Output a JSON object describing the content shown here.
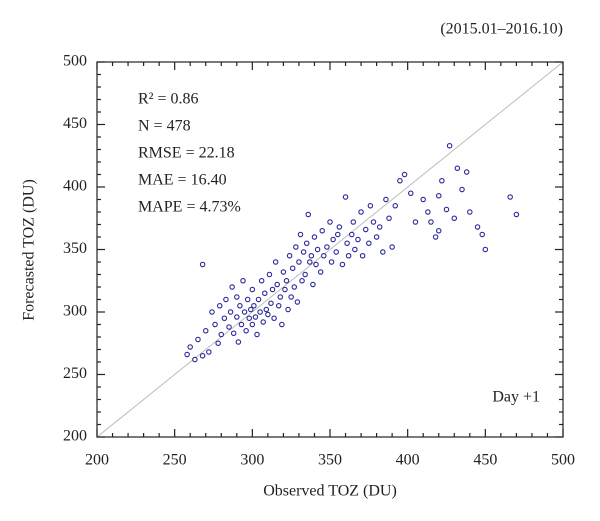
{
  "chart_data": {
    "type": "scatter",
    "subtitle": "(2015.01–2016.10)",
    "xlabel": "Observed TOZ (DU)",
    "ylabel": "Forecasted TOZ (DU)",
    "annotations": [
      "R² = 0.86",
      "N = 478",
      "RMSE = 22.18",
      "MAE = 16.40",
      "MAPE = 4.73%"
    ],
    "corner_note": "Day +1",
    "xlim": [
      200,
      500
    ],
    "ylim": [
      200,
      500
    ],
    "xticks": [
      200,
      250,
      300,
      350,
      400,
      450,
      500
    ],
    "yticks": [
      200,
      250,
      300,
      350,
      400,
      450,
      500
    ],
    "identity_line": true,
    "grid": false,
    "color": "#2b2b9c",
    "x": [
      258,
      260,
      263,
      265,
      268,
      268,
      270,
      272,
      274,
      276,
      278,
      279,
      280,
      282,
      283,
      285,
      286,
      287,
      288,
      290,
      290,
      291,
      292,
      293,
      294,
      295,
      296,
      297,
      298,
      299,
      300,
      300,
      301,
      302,
      303,
      304,
      305,
      306,
      307,
      308,
      309,
      310,
      311,
      312,
      313,
      314,
      315,
      316,
      317,
      318,
      319,
      320,
      321,
      322,
      323,
      324,
      325,
      326,
      327,
      328,
      329,
      330,
      331,
      332,
      333,
      334,
      335,
      336,
      337,
      338,
      339,
      340,
      341,
      342,
      344,
      345,
      346,
      348,
      350,
      351,
      352,
      354,
      355,
      356,
      358,
      360,
      361,
      362,
      364,
      365,
      366,
      368,
      370,
      371,
      373,
      375,
      376,
      378,
      380,
      382,
      384,
      386,
      388,
      390,
      392,
      395,
      398,
      402,
      405,
      410,
      413,
      415,
      418,
      420,
      422,
      425,
      427,
      430,
      432,
      435,
      438,
      440,
      445,
      448,
      450,
      466,
      470,
      420
    ],
    "y": [
      266,
      272,
      262,
      278,
      265,
      338,
      285,
      268,
      300,
      290,
      275,
      305,
      282,
      295,
      310,
      288,
      300,
      320,
      283,
      296,
      312,
      276,
      305,
      290,
      325,
      300,
      285,
      310,
      295,
      302,
      290,
      318,
      305,
      296,
      282,
      310,
      300,
      325,
      292,
      315,
      302,
      298,
      330,
      307,
      318,
      295,
      340,
      322,
      305,
      312,
      290,
      332,
      318,
      325,
      302,
      345,
      312,
      335,
      320,
      352,
      308,
      340,
      362,
      325,
      348,
      330,
      355,
      378,
      340,
      345,
      322,
      360,
      338,
      350,
      332,
      365,
      345,
      352,
      372,
      340,
      358,
      348,
      362,
      368,
      338,
      392,
      355,
      345,
      362,
      372,
      350,
      358,
      380,
      345,
      366,
      355,
      385,
      372,
      360,
      368,
      348,
      390,
      375,
      352,
      385,
      405,
      410,
      395,
      372,
      390,
      380,
      372,
      360,
      393,
      405,
      382,
      433,
      375,
      415,
      398,
      412,
      380,
      368,
      362,
      350,
      392,
      378,
      365
    ]
  }
}
